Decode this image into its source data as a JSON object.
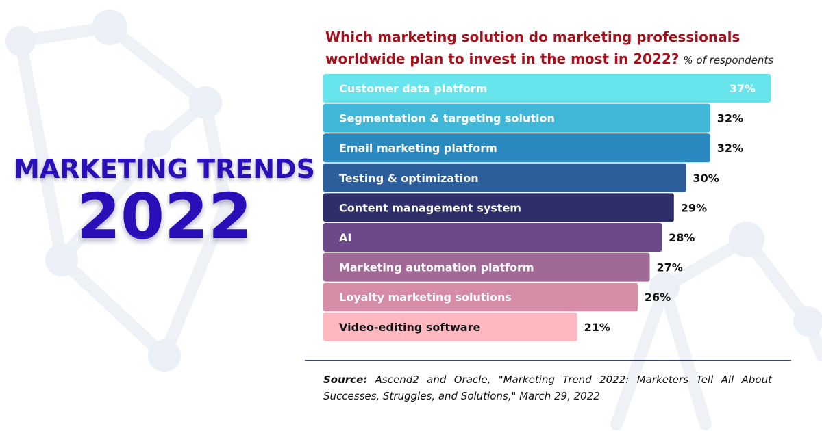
{
  "hero": {
    "title": "MARKETING TRENDS",
    "year": "2022"
  },
  "header": {
    "question": "Which marketing solution do marketing professionals worldwide plan to invest in the most in 2022?",
    "subtitle": "% of respondents"
  },
  "source": {
    "label": "Source:",
    "text": "Ascend2 and Oracle, \"Marketing Trend 2022: Marketers Tell All About Successes, Struggles, and Solutions,\" March 29, 2022"
  },
  "chart_data": {
    "type": "bar",
    "orientation": "horizontal",
    "categories": [
      "Customer data platform",
      "Segmentation & targeting solution",
      "Email marketing platform",
      "Testing & optimization",
      "Content management system",
      "AI",
      "Marketing automation platform",
      "Loyalty marketing solutions",
      "Video-editing software"
    ],
    "values": [
      37,
      32,
      32,
      30,
      29,
      28,
      27,
      26,
      21
    ],
    "value_labels": [
      "37%",
      "32%",
      "32%",
      "30%",
      "29%",
      "28%",
      "27%",
      "26%",
      "21%"
    ],
    "colors": [
      "#68e4ec",
      "#40b7d8",
      "#2a8ac0",
      "#2c5e9c",
      "#2e2f68",
      "#6c4a8a",
      "#a06996",
      "#d68ba6",
      "#ffb8c0"
    ],
    "label_colors": [
      "#ffffff",
      "#ffffff",
      "#ffffff",
      "#ffffff",
      "#ffffff",
      "#ffffff",
      "#ffffff",
      "#ffffff",
      "#111111"
    ],
    "title": "Which marketing solution do marketing professionals worldwide plan to invest in the most in 2022?",
    "xlabel": "",
    "ylabel": "",
    "xlim": [
      0,
      37
    ],
    "grid": false,
    "legend": "none"
  }
}
